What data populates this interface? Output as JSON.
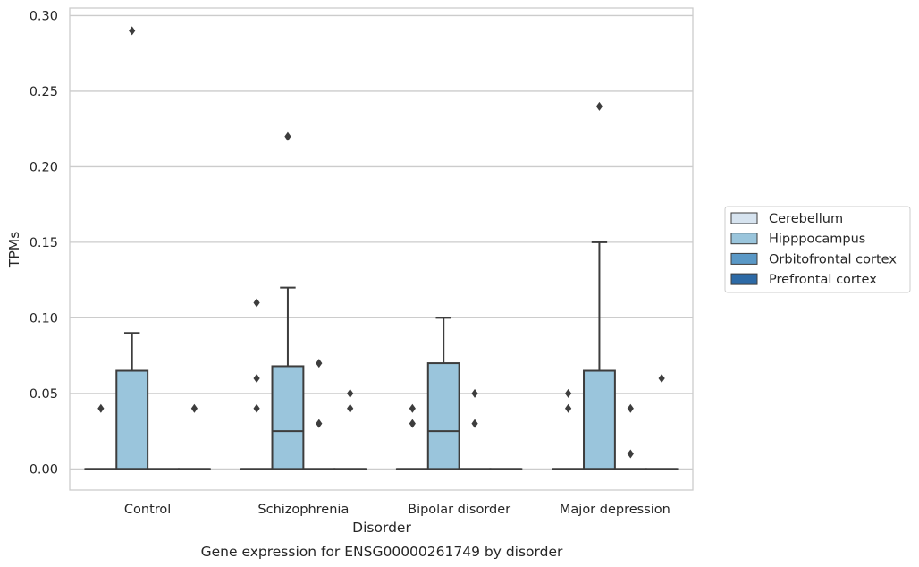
{
  "chart_data": {
    "type": "box",
    "caption": "Gene expression for ENSG00000261749 by disorder",
    "xlabel": "Disorder",
    "ylabel": "TPMs",
    "ylim": [
      -0.014,
      0.305
    ],
    "yticks": [
      "0.00",
      "0.05",
      "0.10",
      "0.15",
      "0.20",
      "0.25",
      "0.30"
    ],
    "grid": true,
    "legend_position": "right",
    "categories": [
      "Control",
      "Schizophrenia",
      "Bipolar disorder",
      "Major depression"
    ],
    "series": [
      {
        "name": "Cerebellum",
        "color": "#d6e3ef"
      },
      {
        "name": "Hipppocampus",
        "color": "#9ac5dc"
      },
      {
        "name": "Orbitofrontal cortex",
        "color": "#5a98c6"
      },
      {
        "name": "Prefrontal cortex",
        "color": "#2d6aa6"
      }
    ],
    "boxes": [
      {
        "category": "Control",
        "series": "Cerebellum",
        "q1": 0,
        "median": 0,
        "q3": 0,
        "whisker_low": 0,
        "whisker_high": 0,
        "outliers": [
          0.04
        ]
      },
      {
        "category": "Control",
        "series": "Hipppocampus",
        "q1": 0,
        "median": 0,
        "q3": 0.065,
        "whisker_low": 0,
        "whisker_high": 0.09,
        "outliers": [
          0.29
        ]
      },
      {
        "category": "Control",
        "series": "Orbitofrontal cortex",
        "q1": 0,
        "median": 0,
        "q3": 0,
        "whisker_low": 0,
        "whisker_high": 0,
        "outliers": []
      },
      {
        "category": "Control",
        "series": "Prefrontal cortex",
        "q1": 0,
        "median": 0,
        "q3": 0,
        "whisker_low": 0,
        "whisker_high": 0,
        "outliers": [
          0.04
        ]
      },
      {
        "category": "Schizophrenia",
        "series": "Cerebellum",
        "q1": 0,
        "median": 0,
        "q3": 0,
        "whisker_low": 0,
        "whisker_high": 0,
        "outliers": [
          0.04,
          0.06,
          0.11
        ]
      },
      {
        "category": "Schizophrenia",
        "series": "Hipppocampus",
        "q1": 0,
        "median": 0.025,
        "q3": 0.068,
        "whisker_low": 0,
        "whisker_high": 0.12,
        "outliers": [
          0.22
        ]
      },
      {
        "category": "Schizophrenia",
        "series": "Orbitofrontal cortex",
        "q1": 0,
        "median": 0,
        "q3": 0,
        "whisker_low": 0,
        "whisker_high": 0,
        "outliers": [
          0.03,
          0.07
        ]
      },
      {
        "category": "Schizophrenia",
        "series": "Prefrontal cortex",
        "q1": 0,
        "median": 0,
        "q3": 0,
        "whisker_low": 0,
        "whisker_high": 0,
        "outliers": [
          0.04,
          0.05
        ]
      },
      {
        "category": "Bipolar disorder",
        "series": "Cerebellum",
        "q1": 0,
        "median": 0,
        "q3": 0,
        "whisker_low": 0,
        "whisker_high": 0,
        "outliers": [
          0.03,
          0.04
        ]
      },
      {
        "category": "Bipolar disorder",
        "series": "Hipppocampus",
        "q1": 0,
        "median": 0.025,
        "q3": 0.07,
        "whisker_low": 0,
        "whisker_high": 0.1,
        "outliers": []
      },
      {
        "category": "Bipolar disorder",
        "series": "Orbitofrontal cortex",
        "q1": 0,
        "median": 0,
        "q3": 0,
        "whisker_low": 0,
        "whisker_high": 0,
        "outliers": [
          0.03,
          0.05
        ]
      },
      {
        "category": "Bipolar disorder",
        "series": "Prefrontal cortex",
        "q1": 0,
        "median": 0,
        "q3": 0,
        "whisker_low": 0,
        "whisker_high": 0,
        "outliers": []
      },
      {
        "category": "Major depression",
        "series": "Cerebellum",
        "q1": 0,
        "median": 0,
        "q3": 0,
        "whisker_low": 0,
        "whisker_high": 0,
        "outliers": [
          0.04,
          0.05
        ]
      },
      {
        "category": "Major depression",
        "series": "Hipppocampus",
        "q1": 0,
        "median": 0,
        "q3": 0.065,
        "whisker_low": 0,
        "whisker_high": 0.15,
        "outliers": [
          0.24
        ]
      },
      {
        "category": "Major depression",
        "series": "Orbitofrontal cortex",
        "q1": 0,
        "median": 0,
        "q3": 0,
        "whisker_low": 0,
        "whisker_high": 0,
        "outliers": [
          0.01,
          0.04
        ]
      },
      {
        "category": "Major depression",
        "series": "Prefrontal cortex",
        "q1": 0,
        "median": 0,
        "q3": 0,
        "whisker_low": 0,
        "whisker_high": 0,
        "outliers": [
          0.06
        ]
      }
    ]
  }
}
